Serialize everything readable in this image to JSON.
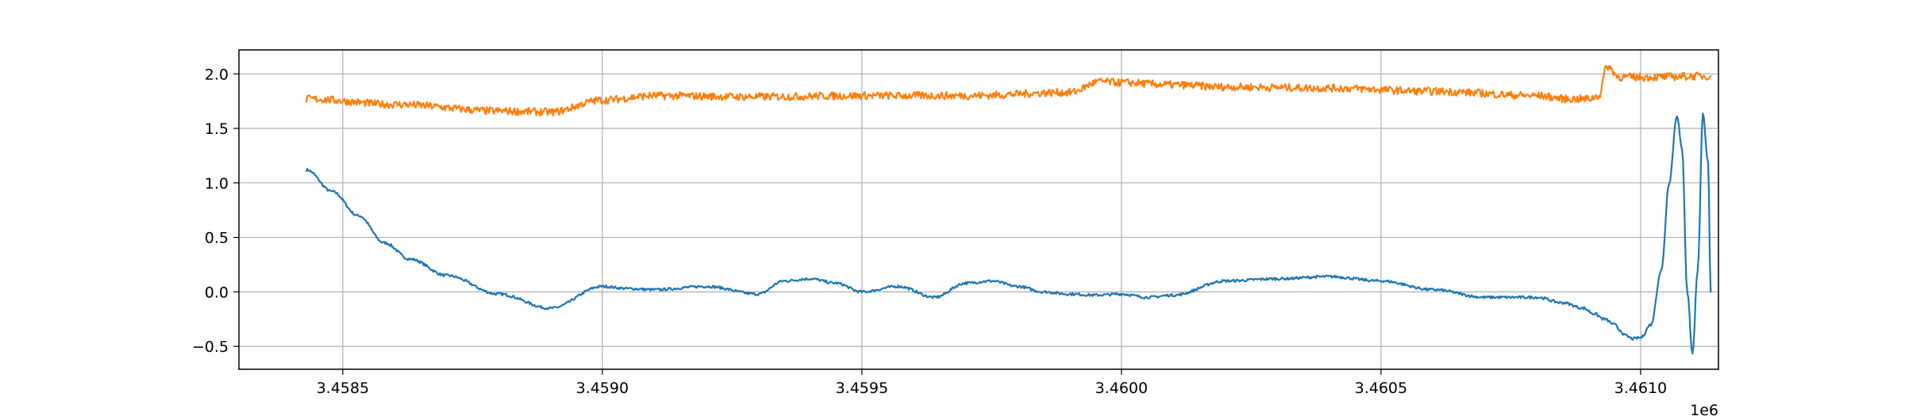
{
  "chart_data": {
    "type": "line",
    "title": "",
    "xlabel": "",
    "ylabel": "",
    "x_offset_label": "1e6",
    "xlim": [
      3458300,
      3461150
    ],
    "ylim": [
      -0.71,
      2.22
    ],
    "grid": true,
    "x_ticks": [
      3458500,
      3459000,
      3459500,
      3460000,
      3460500,
      3461000
    ],
    "x_tick_labels": [
      "3.4585",
      "3.4590",
      "3.4595",
      "3.4600",
      "3.4605",
      "3.4610"
    ],
    "y_ticks": [
      -0.5,
      0.0,
      0.5,
      1.0,
      1.5,
      2.0
    ],
    "y_tick_labels": [
      "−0.5",
      "0.0",
      "0.5",
      "1.0",
      "1.5",
      "2.0"
    ],
    "series": [
      {
        "color": "#1f77b4",
        "noise": 0.012,
        "x": [
          3458430,
          3458480,
          3458530,
          3458580,
          3458630,
          3458700,
          3458800,
          3458900,
          3459000,
          3459050,
          3459100,
          3459200,
          3459300,
          3459350,
          3459400,
          3459450,
          3459500,
          3459570,
          3459640,
          3459700,
          3459750,
          3459800,
          3459850,
          3459900,
          3459950,
          3460000,
          3460050,
          3460100,
          3460200,
          3460300,
          3460400,
          3460500,
          3460600,
          3460700,
          3460800,
          3460850,
          3460890,
          3460910,
          3460930,
          3460950,
          3460960,
          3460970,
          3460985,
          3461000,
          3461020,
          3461040,
          3461055,
          3461070,
          3461080,
          3461090,
          3461100,
          3461110,
          3461120,
          3461130,
          3461135
        ],
        "y": [
          1.12,
          0.92,
          0.7,
          0.45,
          0.3,
          0.15,
          -0.02,
          -0.15,
          0.05,
          0.03,
          0.02,
          0.05,
          -0.02,
          0.1,
          0.12,
          0.08,
          0.0,
          0.05,
          -0.05,
          0.08,
          0.1,
          0.05,
          0.0,
          -0.02,
          -0.03,
          -0.02,
          -0.05,
          -0.03,
          0.1,
          0.12,
          0.14,
          0.1,
          0.02,
          -0.05,
          -0.05,
          -0.1,
          -0.15,
          -0.2,
          -0.25,
          -0.3,
          -0.35,
          -0.4,
          -0.43,
          -0.42,
          -0.3,
          0.2,
          1.0,
          1.62,
          1.3,
          0.0,
          -0.57,
          0.2,
          1.63,
          1.2,
          0.0
        ],
        "y_fine": "appended by script, see x_fine"
      },
      {
        "color": "#ff7f0e",
        "noise": 0.035,
        "x": [
          3458430,
          3458600,
          3458800,
          3458900,
          3459000,
          3459100,
          3459300,
          3459500,
          3459700,
          3459900,
          3459960,
          3460000,
          3460100,
          3460200,
          3460400,
          3460600,
          3460800,
          3460860,
          3460900,
          3460920,
          3460935,
          3460960,
          3461000,
          3461135
        ],
        "y": [
          1.77,
          1.72,
          1.66,
          1.65,
          1.76,
          1.8,
          1.79,
          1.8,
          1.8,
          1.83,
          1.93,
          1.92,
          1.9,
          1.88,
          1.87,
          1.84,
          1.8,
          1.77,
          1.77,
          1.8,
          2.07,
          1.97,
          1.97,
          1.98
        ]
      }
    ]
  }
}
